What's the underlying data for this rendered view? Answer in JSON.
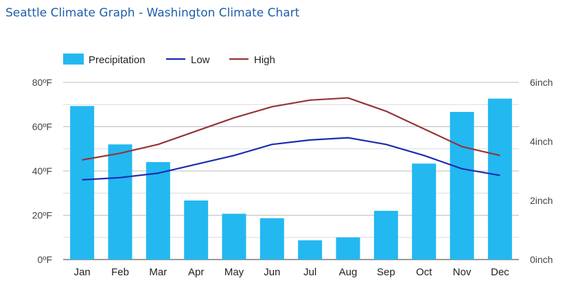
{
  "page": {
    "title": "Seattle Climate Graph - Washington Climate Chart"
  },
  "chart_data": {
    "type": "bar",
    "categories": [
      "Jan",
      "Feb",
      "Mar",
      "Apr",
      "May",
      "Jun",
      "Jul",
      "Aug",
      "Sep",
      "Oct",
      "Nov",
      "Dec"
    ],
    "series": [
      {
        "name": "Precipitation",
        "type": "bar",
        "axis": "right",
        "color": "#23b8f0",
        "values": [
          5.2,
          3.9,
          3.3,
          2.0,
          1.55,
          1.4,
          0.65,
          0.75,
          1.65,
          3.25,
          5.0,
          5.45
        ]
      },
      {
        "name": "Low",
        "type": "line",
        "axis": "left",
        "color": "#1a2cae",
        "values": [
          36,
          37,
          39,
          43,
          47,
          52,
          54,
          55,
          52,
          47,
          41,
          38
        ]
      },
      {
        "name": "High",
        "type": "line",
        "axis": "left",
        "color": "#943434",
        "values": [
          45,
          48,
          52,
          58,
          64,
          69,
          72,
          73,
          67,
          59,
          51,
          47
        ]
      }
    ],
    "y_left": {
      "ylim": [
        0,
        80
      ],
      "ticks": [
        "0ºF",
        "20ºF",
        "40ºF",
        "60ºF",
        "80ºF"
      ]
    },
    "y_right": {
      "ylim": [
        0,
        6
      ],
      "ticks": [
        "0inch",
        "2inch",
        "4inch",
        "6inch"
      ]
    },
    "legend": {
      "placement": "top-left"
    },
    "grid": true
  }
}
